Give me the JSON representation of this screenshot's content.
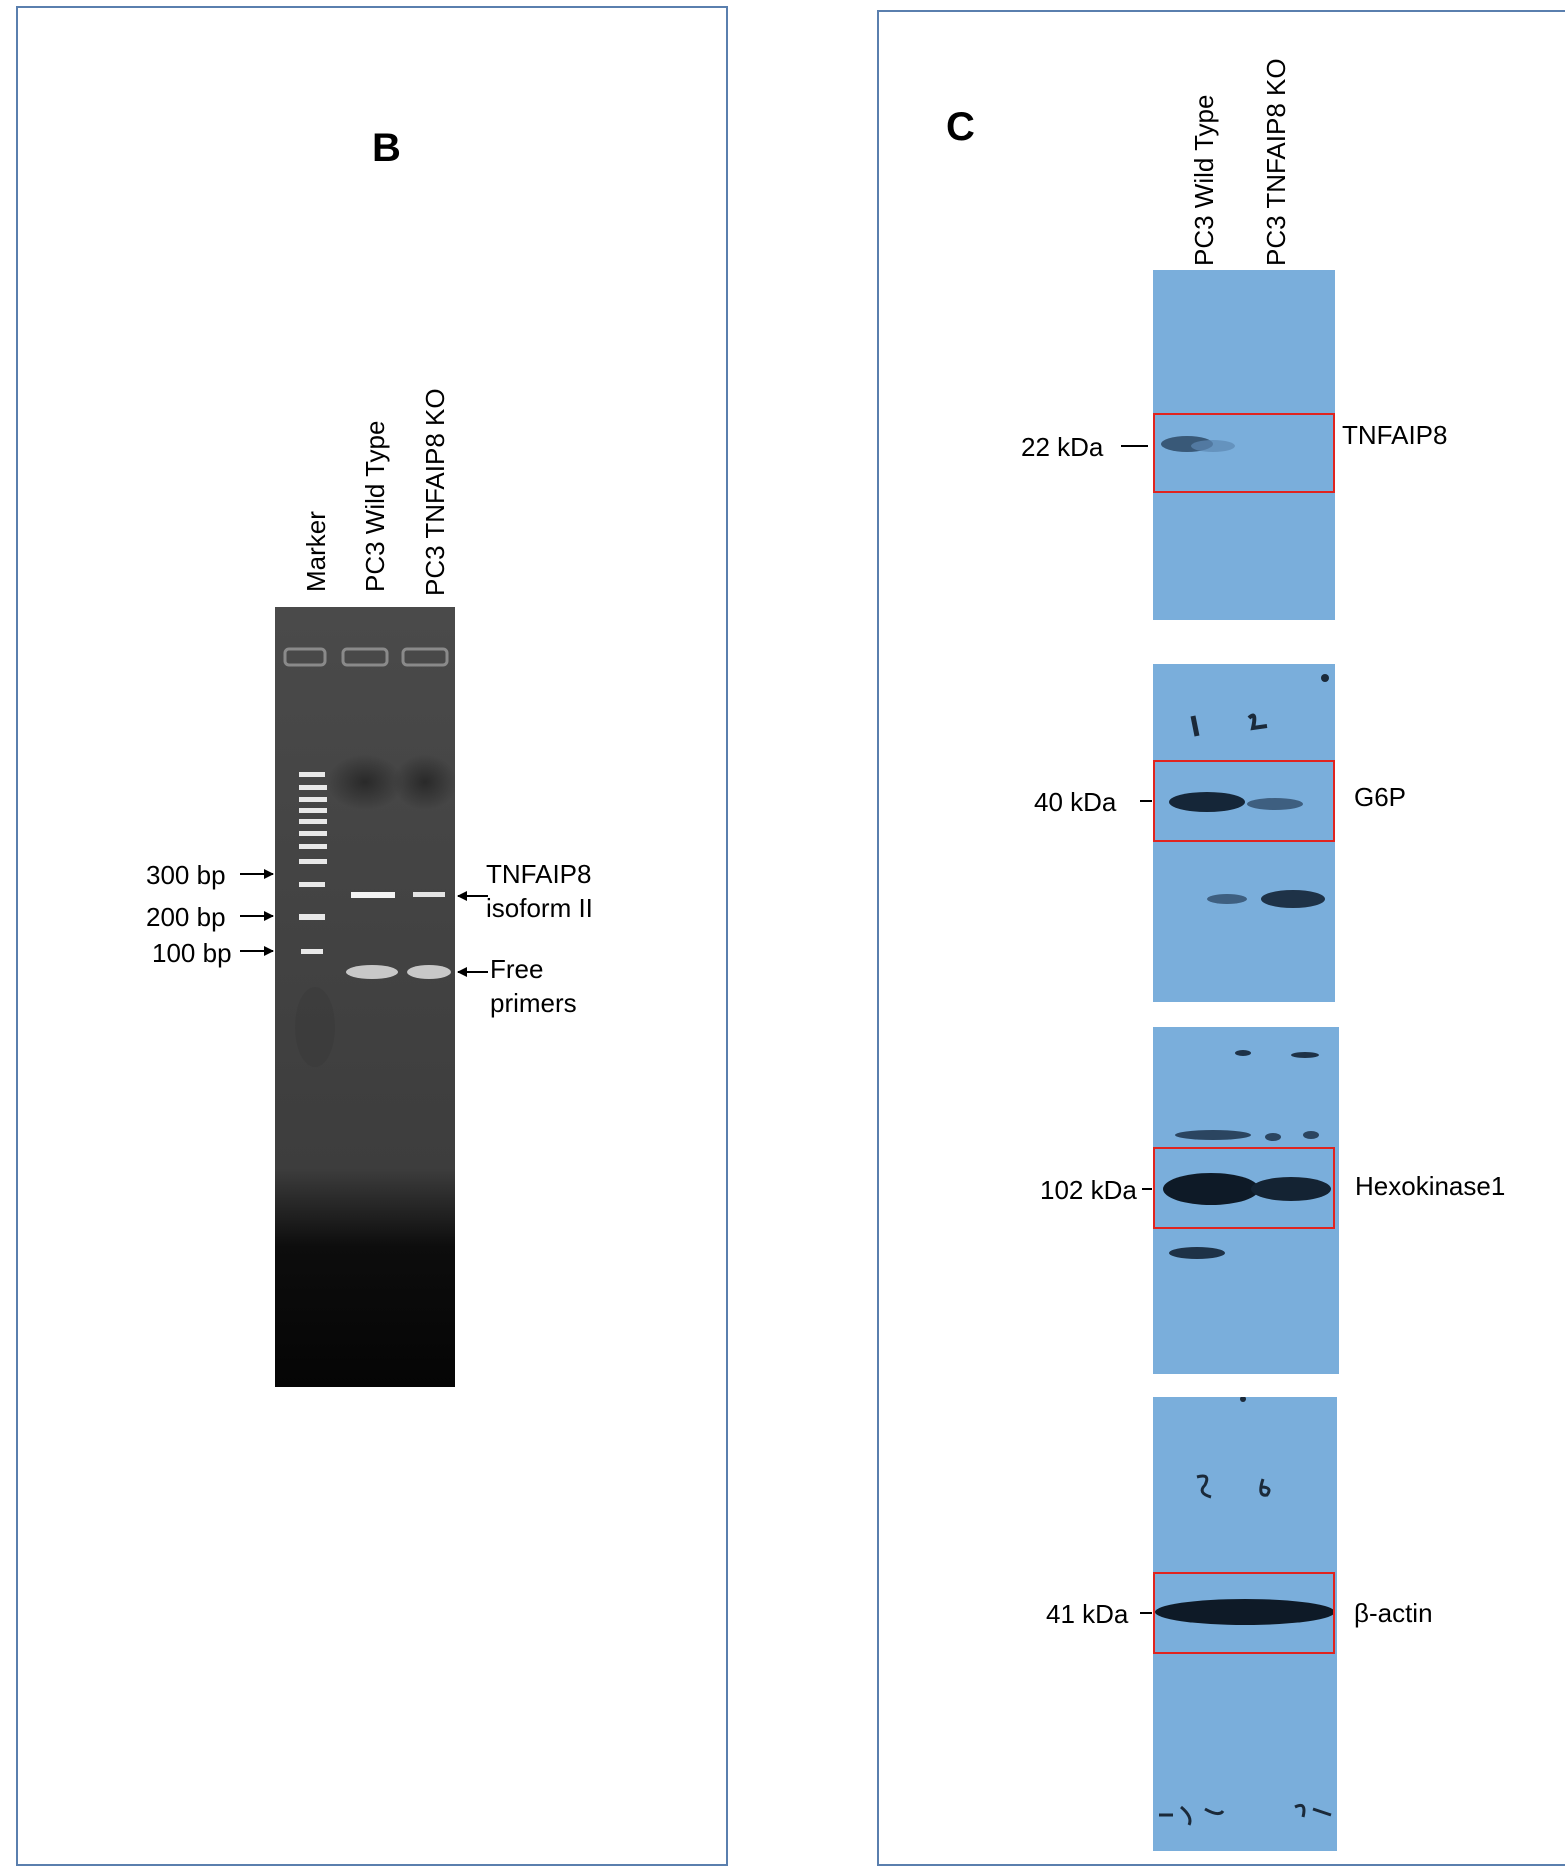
{
  "panel_b": {
    "letter": "B",
    "lanes": [
      "Marker",
      "PC3 Wild Type",
      "PC3 TNFAIP8 KO"
    ],
    "markers": [
      "300 bp",
      "200 bp",
      "100 bp"
    ],
    "band_label_line1": "TNFAIP8",
    "band_label_line2": "isoform II",
    "primer_label_line1": "Free",
    "primer_label_line2": "primers"
  },
  "panel_c": {
    "letter": "C",
    "lanes": [
      "PC3 Wild Type",
      "PC3 TNFAIP8 KO"
    ],
    "blots": [
      {
        "protein": "TNFAIP8",
        "size": "22 kDa"
      },
      {
        "protein": "G6P",
        "size": "40 kDa"
      },
      {
        "protein": "Hexokinase1",
        "size": "102 kDa"
      },
      {
        "protein": "β-actin",
        "size": "41 kDa"
      }
    ]
  },
  "colors": {
    "border": "#5a7fae",
    "highlight_box": "#e0241f",
    "blot_background": "#7aaedb",
    "gel_background": "#4a4a4a"
  }
}
